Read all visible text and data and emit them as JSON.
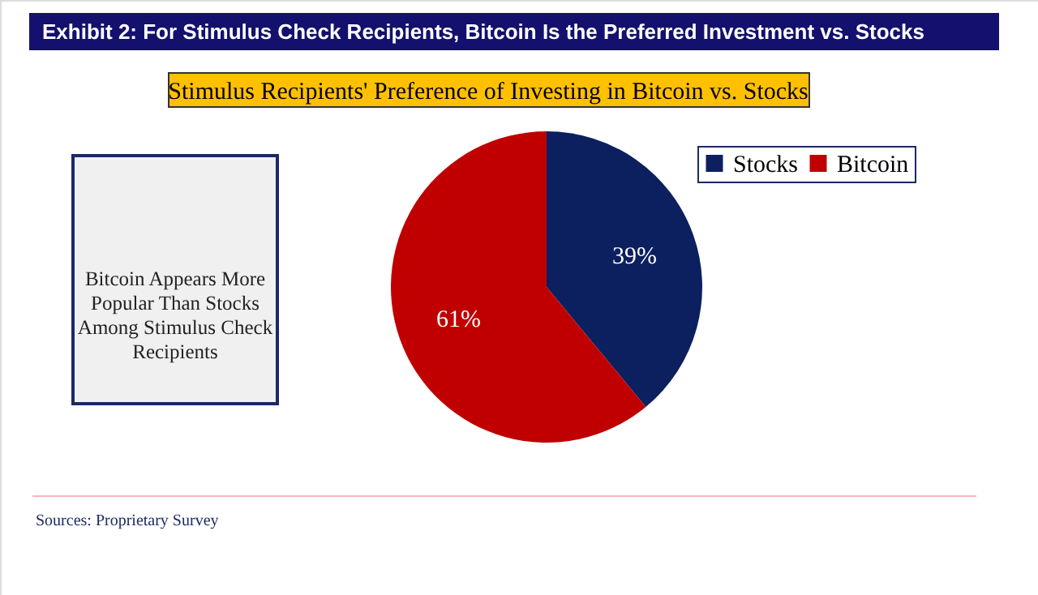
{
  "chart_data": {
    "type": "pie",
    "title": "Exhibit 2: For Stimulus Check Recipients, Bitcoin Is the Preferred Investment vs. Stocks",
    "subtitle": "Stimulus Recipients' Preference of Investing in Bitcoin vs. Stocks",
    "categories": [
      "Stocks",
      "Bitcoin"
    ],
    "values": [
      39,
      61
    ],
    "colors": [
      "#0c1f5e",
      "#c00000"
    ],
    "value_labels": [
      "39%",
      "61%"
    ],
    "legend": "top right",
    "annotations": [
      "Bitcoin Appears More Popular Than Stocks Among Stimulus Check Recipients",
      "Sources: Proprietary Survey"
    ]
  }
}
